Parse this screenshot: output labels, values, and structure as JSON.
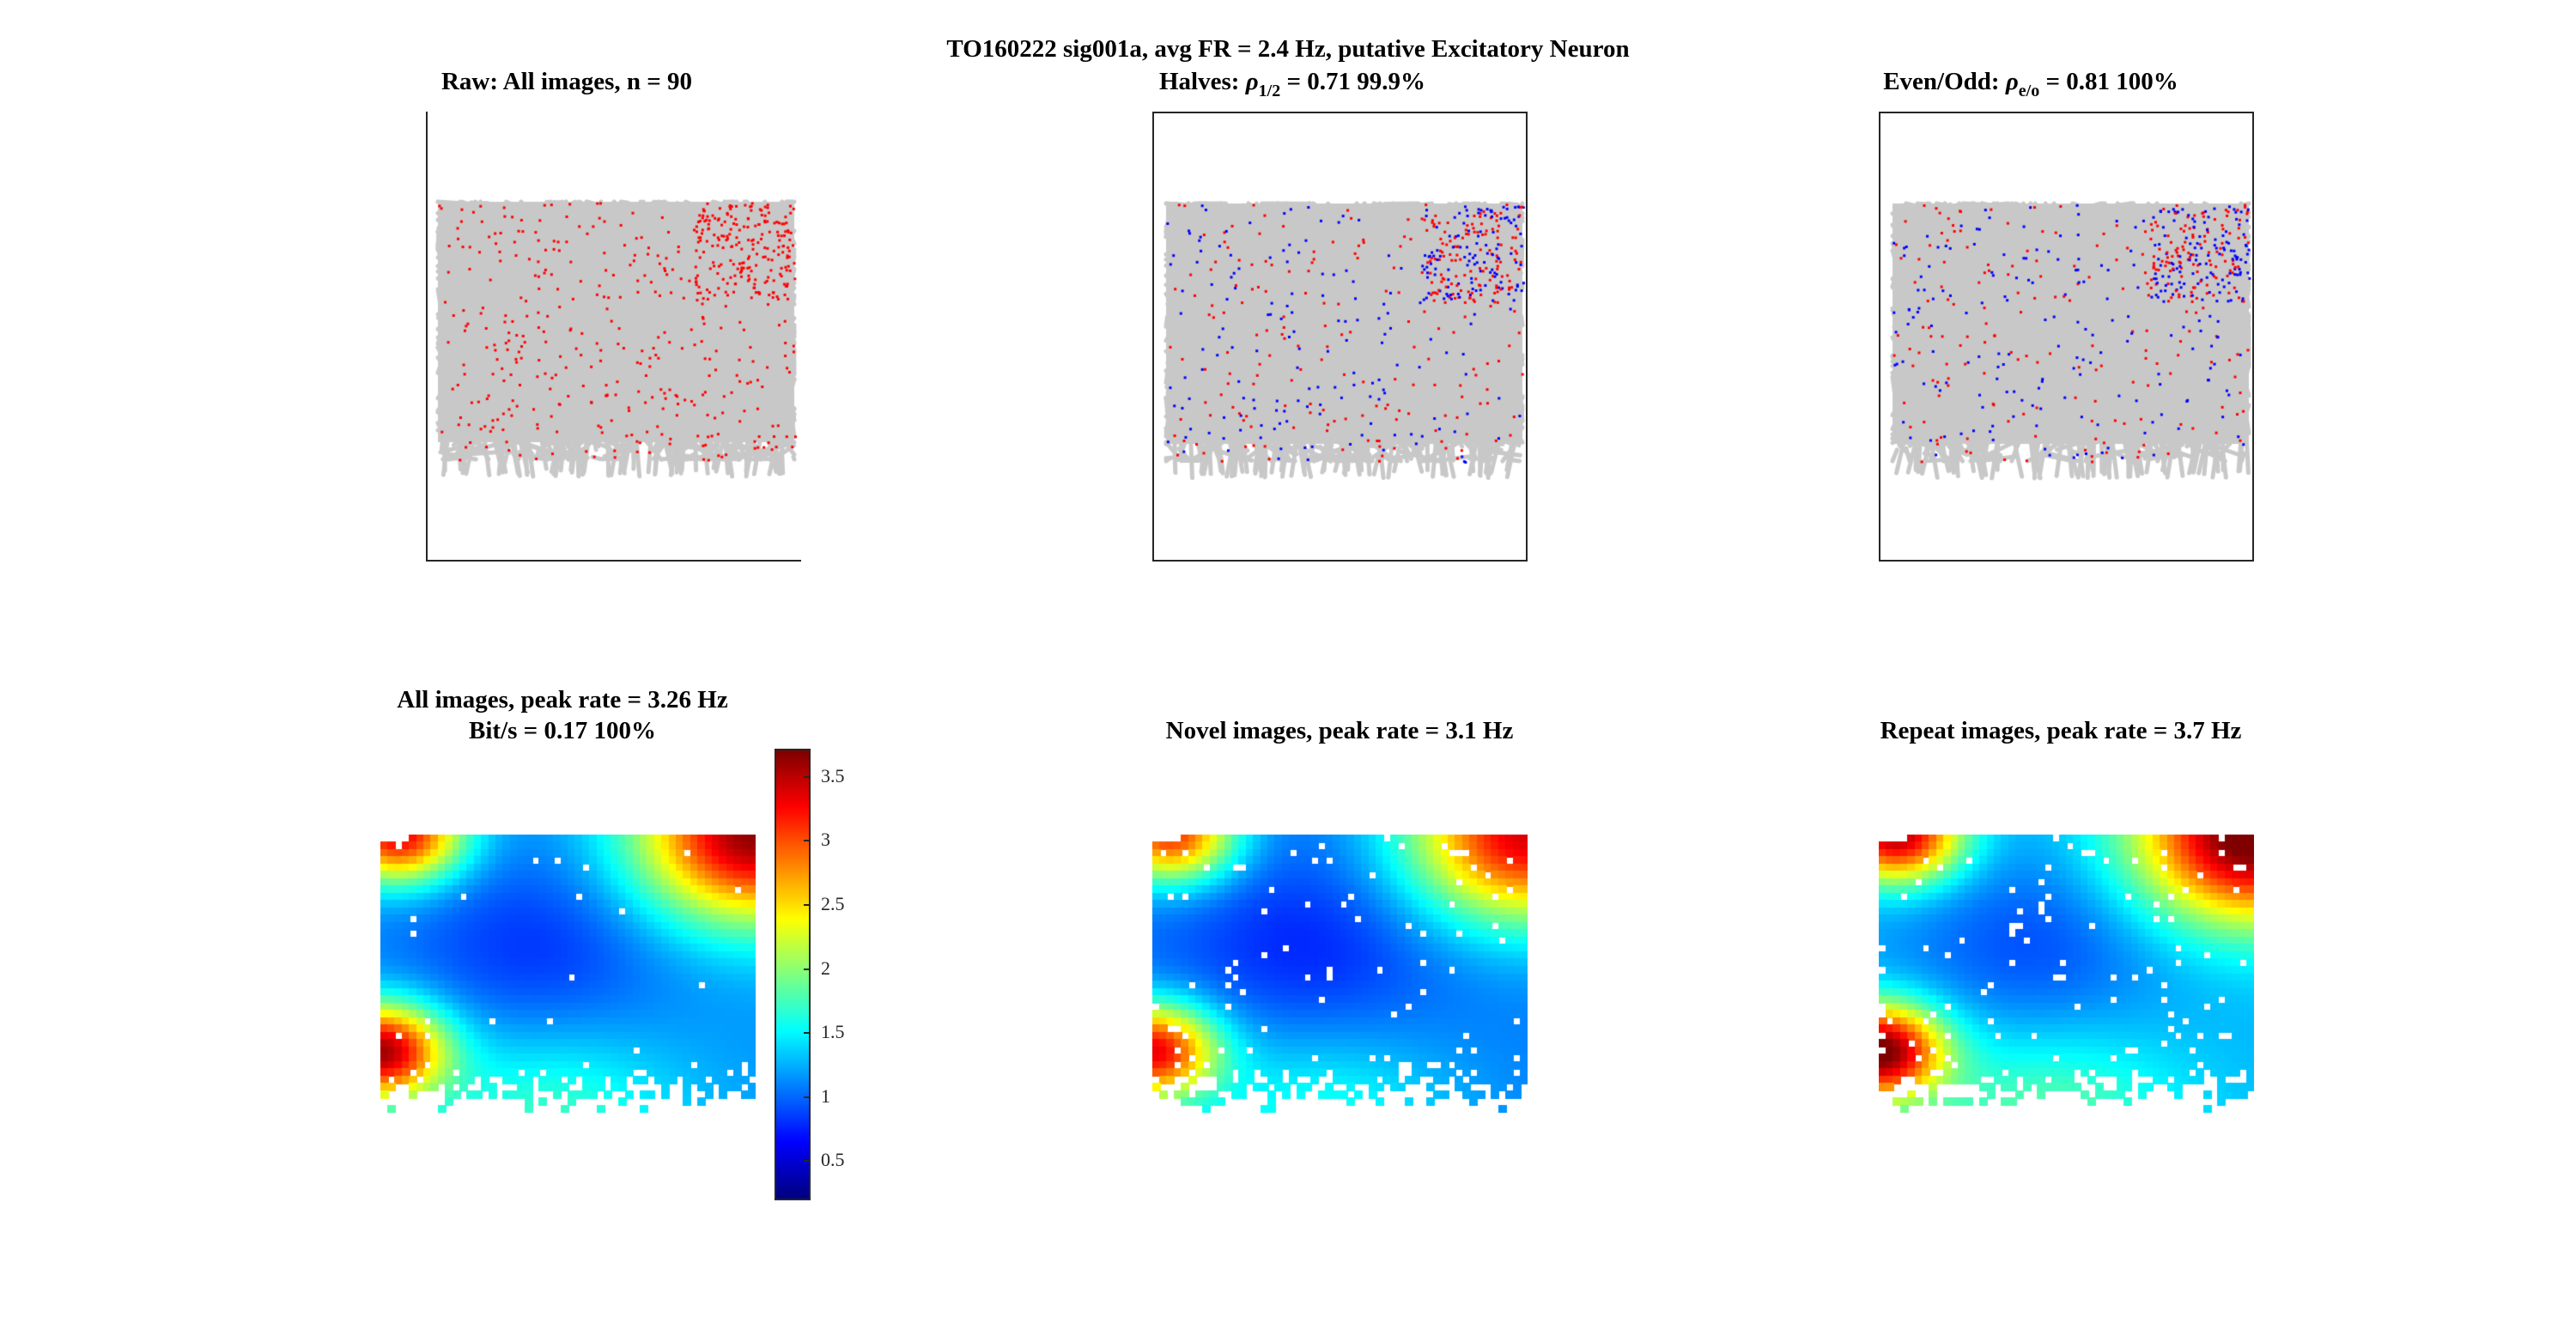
{
  "figure": {
    "suptitle": "TO160222  sig001a, avg FR = 2.4 Hz, putative Excitatory Neuron"
  },
  "panels": {
    "raw_title": "Raw: All images, n = 90",
    "halves": {
      "prefix": "Halves: ",
      "rho": "ρ",
      "sub": "1/2",
      "suffix": " = 0.71 99.9%"
    },
    "evenodd": {
      "prefix": "Even/Odd: ",
      "rho": "ρ",
      "sub": "e/o",
      "suffix": " = 0.81 100%"
    },
    "all_title_line1": "All images, peak rate = 3.26 Hz",
    "all_title_line2": "Bit/s = 0.17 100%",
    "novel_title": "Novel images, peak rate = 3.1 Hz",
    "repeat_title": "Repeat images, peak rate = 3.7 Hz"
  },
  "colors": {
    "scanpath": "#c8c8c8",
    "spike_red": "#ff0000",
    "spike_blue": "#0000ff",
    "axes": "#262626",
    "colormap": "jet"
  },
  "chart_data": [
    {
      "type": "scatter",
      "subtitle": "Raw: All images, n = 90",
      "series": [
        {
          "name": "",
          "color": "#ff0000"
        }
      ]
    },
    {
      "type": "scatter",
      "subtitle": "Halves: ρ1/2 = 0.71 99.9%",
      "series": [
        {
          "name": "",
          "color": "#ff0000"
        },
        {
          "name": "",
          "color": "#0000ff"
        }
      ]
    },
    {
      "type": "scatter",
      "subtitle": "Even/Odd: ρe/o = 0.81 100%",
      "series": [
        {
          "name": "",
          "color": "#ff0000"
        },
        {
          "name": "",
          "color": "#0000ff"
        }
      ]
    },
    {
      "type": "heatmap",
      "subtitle": "All images, peak rate = 3.26 Hz",
      "peak": 3.26,
      "colorbar": {
        "range": [
          0.2,
          3.7
        ],
        "ticks": [
          "0.5",
          "1",
          "1.5",
          "2",
          "2.5",
          "3",
          "3.5"
        ]
      }
    },
    {
      "type": "heatmap",
      "subtitle": "Novel images, peak rate = 3.1 Hz",
      "peak": 3.1
    },
    {
      "type": "heatmap",
      "subtitle": "Repeat images, peak rate = 3.7 Hz",
      "peak": 3.7
    }
  ]
}
